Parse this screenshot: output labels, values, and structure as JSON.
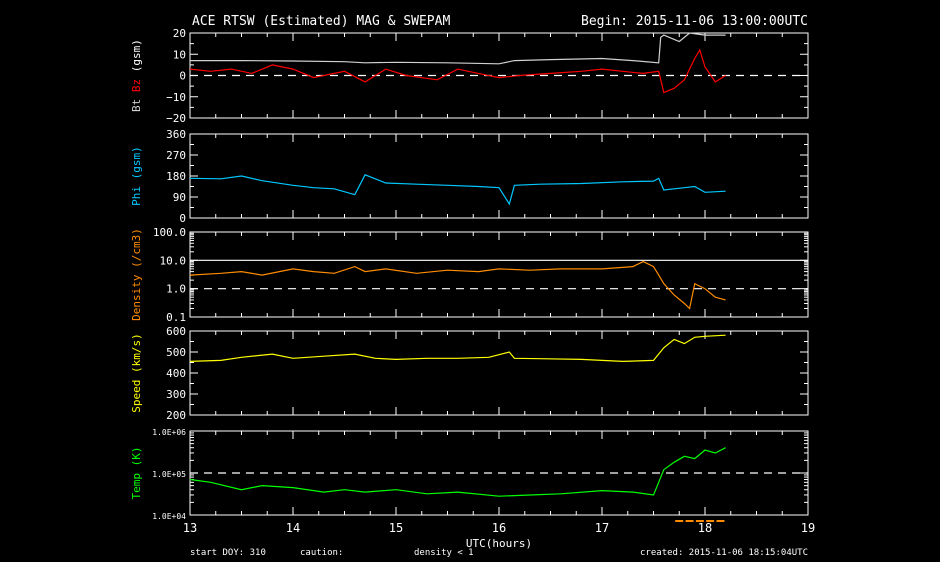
{
  "header": {
    "title": "ACE RTSW (Estimated) MAG & SWEPAM",
    "begin": "Begin: 2015-11-06 13:00:00UTC"
  },
  "footer": {
    "start_doy": "start DOY: 310",
    "caution": "caution:",
    "caution_note": "density < 1",
    "created": "created: 2015-11-06 18:15:04UTC"
  },
  "colors": {
    "bt": "#d0d0d0",
    "bz": "#ff0000",
    "phi": "#00c8ff",
    "density": "#ff8c00",
    "speed": "#ffff00",
    "temp": "#00ff00",
    "caution": "#ff8c00"
  },
  "chart_data": [
    {
      "type": "line",
      "ylabel_parts": [
        "Bt",
        "Bz",
        "(gsm)"
      ],
      "ylim": [
        -20,
        20
      ],
      "ticks": [
        20,
        10,
        0,
        -10,
        -20
      ],
      "tick_labels": [
        "20",
        "10",
        "0",
        "−10",
        "−20"
      ],
      "reference_lines": [
        {
          "y": 0,
          "style": "dashed"
        }
      ],
      "series": [
        {
          "key": "bt",
          "x": [
            13,
            13.5,
            14,
            14.5,
            14.7,
            15,
            15.5,
            16,
            16.15,
            16.5,
            17,
            17.3,
            17.55,
            17.57,
            17.6,
            17.75,
            17.85,
            18,
            18.2
          ],
          "y": [
            7,
            7,
            6.8,
            6.5,
            6,
            6.2,
            6,
            5.5,
            7,
            7.5,
            8,
            7,
            6,
            18,
            19,
            16,
            20,
            19,
            19
          ]
        },
        {
          "key": "bz",
          "x": [
            13,
            13.2,
            13.4,
            13.6,
            13.8,
            14,
            14.2,
            14.5,
            14.7,
            14.9,
            15.1,
            15.4,
            15.6,
            15.8,
            16,
            16.2,
            16.5,
            16.8,
            17,
            17.2,
            17.4,
            17.55,
            17.6,
            17.7,
            17.8,
            17.9,
            17.95,
            18,
            18.1,
            18.2
          ],
          "y": [
            3,
            2,
            3,
            1,
            5,
            3,
            -1,
            2,
            -3,
            3,
            0,
            -2,
            3,
            1,
            -1,
            0,
            1,
            2,
            3,
            2,
            1,
            2,
            -8,
            -6,
            -2,
            8,
            12,
            4,
            -3,
            0
          ]
        }
      ]
    },
    {
      "type": "line",
      "ylabel_parts": [
        "Phi (gsm)"
      ],
      "ylim": [
        0,
        360
      ],
      "ticks": [
        360,
        270,
        180,
        90,
        0
      ],
      "tick_labels": [
        "360",
        "270",
        "180",
        "90",
        "0"
      ],
      "series": [
        {
          "key": "phi",
          "x": [
            13,
            13.3,
            13.5,
            13.7,
            14,
            14.2,
            14.4,
            14.6,
            14.7,
            14.9,
            15.2,
            15.5,
            15.8,
            16,
            16.1,
            16.15,
            16.4,
            16.8,
            17.2,
            17.5,
            17.55,
            17.6,
            17.8,
            17.9,
            18,
            18.2
          ],
          "y": [
            170,
            168,
            180,
            160,
            140,
            130,
            125,
            100,
            185,
            150,
            145,
            140,
            135,
            130,
            60,
            140,
            145,
            148,
            155,
            158,
            170,
            120,
            130,
            135,
            110,
            115
          ]
        }
      ]
    },
    {
      "type": "line",
      "scale": "log",
      "ylabel_parts": [
        "Density (/cm3)"
      ],
      "ylim": [
        0.1,
        100
      ],
      "ticks": [
        100,
        10,
        1,
        0.1
      ],
      "tick_labels": [
        "100.0",
        "10.0",
        "1.0",
        "0.1"
      ],
      "reference_lines": [
        {
          "y": 10,
          "style": "solid"
        },
        {
          "y": 1,
          "style": "dashed"
        }
      ],
      "series": [
        {
          "key": "density",
          "x": [
            13,
            13.3,
            13.5,
            13.7,
            14,
            14.2,
            14.4,
            14.6,
            14.7,
            14.9,
            15.2,
            15.5,
            15.8,
            16,
            16.3,
            16.6,
            17,
            17.3,
            17.4,
            17.5,
            17.55,
            17.6,
            17.7,
            17.8,
            17.85,
            17.9,
            18,
            18.1,
            18.2
          ],
          "y": [
            3,
            3.5,
            4,
            3,
            5,
            4,
            3.5,
            6,
            4,
            5,
            3.5,
            4.5,
            4,
            5,
            4.5,
            5,
            5,
            6,
            9,
            6,
            3,
            1.5,
            0.6,
            0.3,
            0.2,
            1.5,
            1,
            0.5,
            0.4
          ]
        }
      ]
    },
    {
      "type": "line",
      "ylabel_parts": [
        "Speed (km/s)"
      ],
      "ylim": [
        200,
        600
      ],
      "ticks": [
        600,
        500,
        400,
        300,
        200
      ],
      "tick_labels": [
        "600",
        "500",
        "400",
        "300",
        "200"
      ],
      "series": [
        {
          "key": "speed",
          "x": [
            13,
            13.3,
            13.5,
            13.8,
            14,
            14.3,
            14.6,
            14.8,
            15,
            15.3,
            15.6,
            15.9,
            16.1,
            16.15,
            16.4,
            16.8,
            17.2,
            17.5,
            17.6,
            17.7,
            17.8,
            17.9,
            18,
            18.2
          ],
          "y": [
            455,
            460,
            475,
            490,
            470,
            480,
            490,
            470,
            465,
            470,
            470,
            475,
            500,
            470,
            468,
            465,
            455,
            460,
            520,
            560,
            540,
            570,
            575,
            580
          ]
        }
      ]
    },
    {
      "type": "line",
      "scale": "log",
      "ylabel_parts": [
        "Temp (K)"
      ],
      "ylim": [
        10000,
        1000000
      ],
      "ticks": [
        1000000,
        100000,
        10000
      ],
      "tick_labels": [
        "1.0E+06",
        "1.0E+05",
        "1.0E+04"
      ],
      "reference_lines": [
        {
          "y": 100000,
          "style": "dashed"
        }
      ],
      "series": [
        {
          "key": "temp",
          "x": [
            13,
            13.2,
            13.5,
            13.7,
            14,
            14.3,
            14.5,
            14.7,
            15,
            15.3,
            15.6,
            16,
            16.3,
            16.6,
            17,
            17.3,
            17.5,
            17.55,
            17.6,
            17.7,
            17.8,
            17.9,
            18,
            18.1,
            18.2
          ],
          "y": [
            70000,
            60000,
            40000,
            50000,
            45000,
            35000,
            40000,
            35000,
            40000,
            32000,
            35000,
            28000,
            30000,
            32000,
            38000,
            35000,
            30000,
            60000,
            120000,
            180000,
            250000,
            220000,
            350000,
            300000,
            400000
          ]
        }
      ]
    }
  ],
  "x_axis": {
    "xlim": [
      13,
      19
    ],
    "ticks": [
      13,
      14,
      15,
      16,
      17,
      18,
      19
    ],
    "tick_labels": [
      "13",
      "14",
      "15",
      "16",
      "17",
      "18",
      "19"
    ],
    "label": "UTC(hours)",
    "caution_marks": [
      17.75,
      17.85,
      17.95,
      18.05,
      18.15
    ]
  }
}
